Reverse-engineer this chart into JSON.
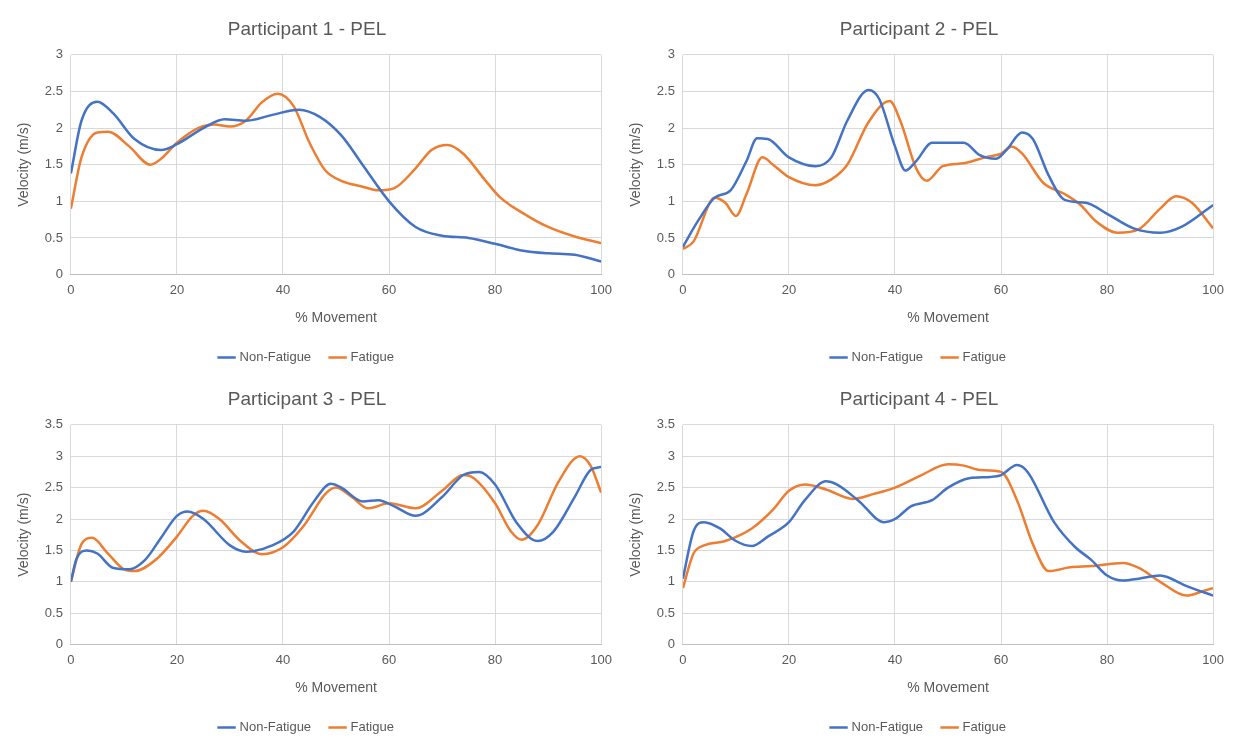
{
  "chart_data": [
    {
      "type": "line",
      "title": "Participant 1 - PEL",
      "xlabel": "% Movement",
      "ylabel": "Velocity (m/s)",
      "xlim": [
        0,
        100
      ],
      "xticks": [
        0,
        20,
        40,
        60,
        80,
        100
      ],
      "ylim": [
        0,
        3
      ],
      "yticks": [
        0,
        0.5,
        1,
        1.5,
        2,
        2.5,
        3
      ],
      "grid": true,
      "legend": "bottom",
      "marker": "none",
      "line_style": "solid",
      "series": [
        {
          "name": "Non-Fatigue",
          "color": "#4472c4",
          "x": [
            0,
            2,
            5,
            8,
            12,
            17,
            20,
            25,
            29,
            33,
            38,
            43,
            47,
            51,
            55,
            60,
            65,
            70,
            75,
            80,
            85,
            90,
            95,
            100
          ],
          "values": [
            1.38,
            2.1,
            2.36,
            2.2,
            1.85,
            1.7,
            1.78,
            2.0,
            2.12,
            2.1,
            2.18,
            2.25,
            2.15,
            1.9,
            1.5,
            1.0,
            0.65,
            0.53,
            0.5,
            0.42,
            0.33,
            0.29,
            0.27,
            0.18
          ]
        },
        {
          "name": "Fatigue",
          "color": "#ed7d31",
          "x": [
            0,
            2,
            5,
            7,
            11,
            15,
            17,
            20,
            24,
            27,
            30,
            33,
            36,
            39,
            42,
            45,
            48,
            51,
            55,
            58,
            61,
            65,
            68,
            71,
            74,
            78,
            81,
            85,
            90,
            95,
            100
          ],
          "values": [
            0.9,
            1.6,
            1.94,
            1.95,
            1.75,
            1.5,
            1.58,
            1.8,
            2.0,
            2.05,
            2.02,
            2.1,
            2.35,
            2.47,
            2.3,
            1.8,
            1.42,
            1.28,
            1.2,
            1.15,
            1.18,
            1.45,
            1.7,
            1.77,
            1.65,
            1.3,
            1.05,
            0.85,
            0.65,
            0.52,
            0.43
          ]
        }
      ]
    },
    {
      "type": "line",
      "title": "Participant 2 - PEL",
      "xlabel": "% Movement",
      "ylabel": "Velocity (m/s)",
      "xlim": [
        0,
        100
      ],
      "xticks": [
        0,
        20,
        40,
        60,
        80,
        100
      ],
      "ylim": [
        0,
        3
      ],
      "yticks": [
        0,
        0.5,
        1,
        1.5,
        2,
        2.5,
        3
      ],
      "grid": true,
      "legend": "bottom",
      "marker": "none",
      "line_style": "solid",
      "series": [
        {
          "name": "Non-Fatigue",
          "color": "#4472c4",
          "x": [
            0,
            3,
            6,
            9,
            12,
            14,
            16,
            20,
            25,
            28,
            31,
            35,
            37,
            40,
            42,
            44,
            47,
            51,
            53,
            56,
            59,
            61,
            64,
            66,
            69,
            72,
            76,
            80,
            85,
            90,
            94,
            100
          ],
          "values": [
            0.38,
            0.75,
            1.05,
            1.15,
            1.55,
            1.86,
            1.85,
            1.6,
            1.48,
            1.6,
            2.1,
            2.52,
            2.4,
            1.75,
            1.42,
            1.55,
            1.8,
            1.8,
            1.8,
            1.63,
            1.58,
            1.7,
            1.94,
            1.85,
            1.35,
            1.02,
            0.98,
            0.83,
            0.63,
            0.57,
            0.65,
            0.95
          ]
        },
        {
          "name": "Fatigue",
          "color": "#ed7d31",
          "x": [
            0,
            2,
            6,
            8,
            10,
            12,
            15,
            17,
            20,
            25,
            28,
            31,
            35,
            39,
            41,
            44,
            46,
            49,
            53,
            57,
            60,
            62,
            64,
            68,
            72,
            75,
            78,
            82,
            86,
            90,
            93,
            96,
            100
          ],
          "values": [
            0.35,
            0.45,
            1.05,
            0.98,
            0.8,
            1.1,
            1.6,
            1.5,
            1.33,
            1.22,
            1.3,
            1.5,
            2.08,
            2.37,
            2.1,
            1.45,
            1.28,
            1.48,
            1.52,
            1.6,
            1.65,
            1.75,
            1.65,
            1.25,
            1.1,
            0.95,
            0.72,
            0.57,
            0.62,
            0.9,
            1.07,
            0.98,
            0.63
          ]
        }
      ]
    },
    {
      "type": "line",
      "title": "Participant 3 - PEL",
      "xlabel": "% Movement",
      "ylabel": "Velocity (m/s)",
      "xlim": [
        0,
        100
      ],
      "xticks": [
        0,
        20,
        40,
        60,
        80,
        100
      ],
      "ylim": [
        0,
        3.5
      ],
      "yticks": [
        0,
        0.5,
        1,
        1.5,
        2,
        2.5,
        3,
        3.5
      ],
      "grid": true,
      "legend": "bottom",
      "marker": "none",
      "line_style": "solid",
      "series": [
        {
          "name": "Non-Fatigue",
          "color": "#4472c4",
          "x": [
            0,
            1,
            3,
            5,
            8,
            11,
            14,
            17,
            20,
            22,
            25,
            30,
            33,
            38,
            42,
            46,
            49,
            51,
            55,
            58,
            61,
            65,
            70,
            74,
            77,
            80,
            84,
            88,
            91,
            95,
            98,
            100
          ],
          "values": [
            1.0,
            1.35,
            1.5,
            1.45,
            1.22,
            1.2,
            1.35,
            1.7,
            2.05,
            2.12,
            2.0,
            1.58,
            1.48,
            1.58,
            1.8,
            2.3,
            2.56,
            2.5,
            2.28,
            2.3,
            2.2,
            2.05,
            2.35,
            2.7,
            2.75,
            2.55,
            1.95,
            1.65,
            1.8,
            2.35,
            2.78,
            2.83
          ]
        },
        {
          "name": "Fatigue",
          "color": "#ed7d31",
          "x": [
            0,
            2,
            4,
            7,
            10,
            12,
            16,
            20,
            23,
            25,
            28,
            32,
            36,
            40,
            44,
            48,
            50,
            53,
            56,
            60,
            65,
            70,
            74,
            76,
            80,
            83,
            85,
            88,
            92,
            96,
            98,
            100
          ],
          "values": [
            1.0,
            1.6,
            1.7,
            1.45,
            1.2,
            1.17,
            1.35,
            1.72,
            2.05,
            2.13,
            2.0,
            1.65,
            1.44,
            1.55,
            1.9,
            2.4,
            2.5,
            2.35,
            2.17,
            2.25,
            2.17,
            2.45,
            2.7,
            2.65,
            2.25,
            1.8,
            1.67,
            1.9,
            2.6,
            3.0,
            2.85,
            2.42
          ]
        }
      ]
    },
    {
      "type": "line",
      "title": "Participant 4 - PEL",
      "xlabel": "% Movement",
      "ylabel": "Velocity (m/s)",
      "xlim": [
        0,
        100
      ],
      "xticks": [
        0,
        20,
        40,
        60,
        80,
        100
      ],
      "ylim": [
        0,
        3.5
      ],
      "yticks": [
        0,
        0.5,
        1,
        1.5,
        2,
        2.5,
        3,
        3.5
      ],
      "grid": true,
      "legend": "bottom",
      "marker": "none",
      "line_style": "solid",
      "series": [
        {
          "name": "Non-Fatigue",
          "color": "#4472c4",
          "x": [
            0,
            2,
            4,
            7,
            10,
            13,
            16,
            20,
            23,
            27,
            29,
            33,
            38,
            40,
            43,
            47,
            50,
            54,
            58,
            60,
            63,
            65,
            70,
            74,
            77,
            80,
            83,
            86,
            90,
            95,
            100
          ],
          "values": [
            1.05,
            1.8,
            1.95,
            1.85,
            1.65,
            1.57,
            1.72,
            1.95,
            2.3,
            2.6,
            2.55,
            2.3,
            1.95,
            2.0,
            2.2,
            2.3,
            2.5,
            2.65,
            2.67,
            2.7,
            2.86,
            2.75,
            1.95,
            1.55,
            1.35,
            1.1,
            1.02,
            1.05,
            1.1,
            0.93,
            0.78
          ]
        },
        {
          "name": "Fatigue",
          "color": "#ed7d31",
          "x": [
            0,
            2,
            4,
            8,
            13,
            17,
            20,
            23,
            27,
            32,
            36,
            40,
            45,
            50,
            53,
            56,
            60,
            63,
            66,
            69,
            73,
            77,
            83,
            86,
            90,
            95,
            98,
            100
          ],
          "values": [
            0.9,
            1.45,
            1.58,
            1.65,
            1.85,
            2.15,
            2.45,
            2.55,
            2.47,
            2.32,
            2.4,
            2.5,
            2.7,
            2.87,
            2.85,
            2.78,
            2.75,
            2.3,
            1.6,
            1.17,
            1.23,
            1.25,
            1.3,
            1.22,
            1.0,
            0.78,
            0.85,
            0.9
          ]
        }
      ]
    }
  ]
}
